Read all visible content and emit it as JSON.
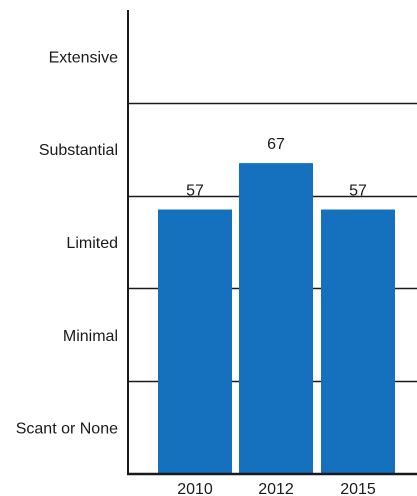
{
  "chart_data": {
    "type": "bar",
    "categories": [
      "2010",
      "2012",
      "2015"
    ],
    "values": [
      57,
      67,
      57
    ],
    "data_labels": [
      "57",
      "67",
      "57"
    ],
    "ylim": [
      0,
      100
    ],
    "bands": [
      {
        "label": "Scant or None",
        "from": 0,
        "to": 20
      },
      {
        "label": "Minimal",
        "from": 20,
        "to": 40
      },
      {
        "label": "Limited",
        "from": 40,
        "to": 60
      },
      {
        "label": "Substantial",
        "from": 60,
        "to": 80
      },
      {
        "label": "Extensive",
        "from": 80,
        "to": 100
      }
    ],
    "grid": true,
    "colors": {
      "bar": "#1570be",
      "axis": "#1a1a1a"
    }
  }
}
